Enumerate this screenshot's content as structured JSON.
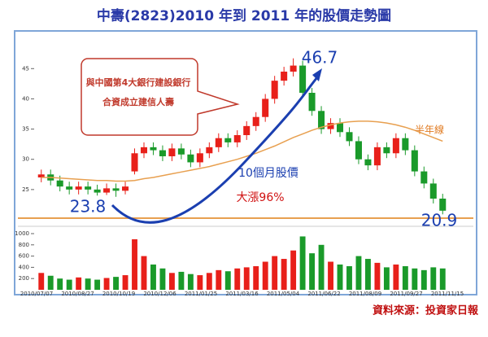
{
  "title": "中壽(2823)2010 年到 2011 年的股價走勢圖",
  "source": "資料來源：投資家日報",
  "callout": [
    "與中國第4大銀行建設銀行",
    "合資成立建信人壽"
  ],
  "annotations": {
    "high": "46.7",
    "low": "23.8",
    "last": "20.9",
    "period": "10個月股價",
    "gain": "大漲96%",
    "ma_label": "半年線"
  },
  "chart_data": {
    "type": "candlestick",
    "dates": [
      "2010/07/07",
      "2010/08/27",
      "2010/10/19",
      "2010/12/06",
      "2011/01/25",
      "2011/03/16",
      "2011/05/04",
      "2011/06/22",
      "2011/08/09",
      "2011/09/27",
      "2011/11/15"
    ],
    "open": [
      27,
      27.5,
      26.5,
      25.5,
      25,
      25.5,
      25,
      24.5,
      25.2,
      24.8,
      28,
      31,
      32,
      31.5,
      30.5,
      31.8,
      30.8,
      29.5,
      31,
      32,
      33.5,
      32.8,
      34,
      35.5,
      37,
      40,
      43,
      44.5,
      45.5,
      41,
      38,
      35,
      36,
      34.5,
      33,
      30,
      29,
      32,
      31,
      33.5,
      31.5,
      28,
      26,
      23.5
    ],
    "high": [
      28.3,
      28.3,
      27.3,
      26.3,
      26.3,
      26.3,
      25.8,
      26,
      26,
      26.3,
      31.8,
      32.8,
      32.8,
      32.3,
      32.6,
      32.6,
      31.6,
      31.8,
      32.8,
      34.3,
      34.3,
      34.8,
      36.3,
      37.8,
      40.8,
      43.8,
      45.3,
      46.7,
      46.3,
      41.8,
      38.8,
      36.8,
      36.8,
      35.3,
      33.8,
      30.8,
      32.8,
      32.8,
      34.3,
      34.3,
      32.3,
      28.8,
      26.8,
      24.3
    ],
    "low": [
      26.2,
      25.7,
      24.7,
      24.2,
      24.2,
      24.2,
      24,
      24.1,
      23.8,
      24.2,
      27.5,
      30.2,
      30.7,
      29.7,
      29.7,
      30,
      28.7,
      28.7,
      30.2,
      31.2,
      32,
      32,
      33.2,
      34.7,
      36.2,
      39.2,
      42.2,
      43.7,
      40.2,
      37.2,
      34.2,
      34.2,
      33.7,
      32.2,
      29.2,
      28.2,
      28.2,
      30.2,
      30.2,
      30.7,
      27.2,
      25.2,
      22.7,
      20.9
    ],
    "close": [
      27.5,
      26.5,
      25.5,
      25,
      25.5,
      25,
      24.5,
      25.2,
      24.8,
      25.5,
      31,
      32,
      31.5,
      30.5,
      31.8,
      30.8,
      29.5,
      31,
      32,
      33.5,
      32.8,
      34,
      35.5,
      37,
      40,
      43,
      44.5,
      45.5,
      41,
      38,
      35,
      36,
      34.5,
      33,
      30,
      29,
      32,
      31,
      33.5,
      31.5,
      28,
      26,
      23.5,
      21.5
    ],
    "ma": [
      27,
      27,
      26.9,
      26.8,
      26.7,
      26.6,
      26.5,
      26.5,
      26.4,
      26.4,
      26.5,
      26.8,
      27,
      27.3,
      27.6,
      27.9,
      28.2,
      28.5,
      28.8,
      29.2,
      29.6,
      30,
      30.5,
      31,
      31.6,
      32.2,
      32.9,
      33.6,
      34.2,
      34.8,
      35.3,
      35.7,
      36,
      36.2,
      36.3,
      36.3,
      36.2,
      36,
      35.7,
      35.3,
      34.8,
      34.2,
      33.6,
      33
    ],
    "volume": [
      300,
      250,
      200,
      180,
      220,
      200,
      180,
      210,
      230,
      260,
      900,
      600,
      450,
      380,
      300,
      320,
      280,
      260,
      300,
      350,
      330,
      380,
      400,
      420,
      500,
      600,
      550,
      700,
      950,
      650,
      800,
      500,
      450,
      420,
      600,
      550,
      480,
      400,
      450,
      420,
      380,
      350,
      400,
      380
    ],
    "up_color": "#e8201a",
    "down_color": "#1a9a2a",
    "ma_color": "#e8a050",
    "ylim": [
      20,
      48
    ],
    "yticks": [
      25,
      30,
      35,
      40,
      45
    ],
    "vlim": [
      0,
      1000
    ],
    "vticks": [
      200,
      400,
      600,
      800,
      1000
    ]
  }
}
